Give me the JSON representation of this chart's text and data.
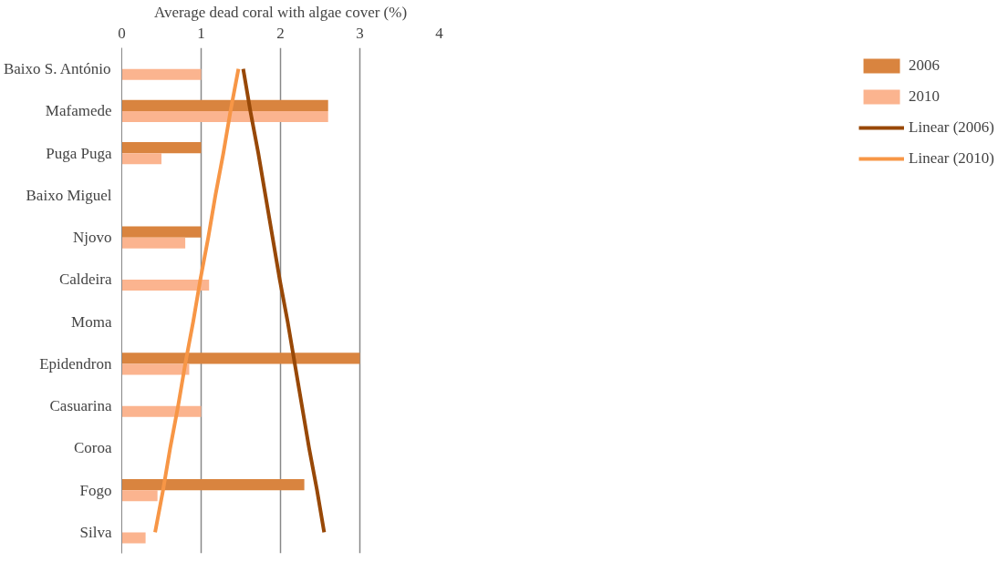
{
  "chart_data": {
    "type": "bar",
    "orientation": "horizontal",
    "xlabel": "Average dead coral with algae cover (%)",
    "categories": [
      "Baixo S. António",
      "Mafamede",
      "Puga Puga",
      "Baixo Miguel",
      "Njovo",
      "Caldeira",
      "Moma",
      "Epidendron",
      "Casuarina",
      "Coroa",
      "Fogo",
      "Silva"
    ],
    "series": [
      {
        "name": "2006",
        "color": "#d9843f",
        "values": [
          null,
          2.6,
          1.0,
          null,
          1.0,
          null,
          null,
          3.0,
          null,
          null,
          2.3,
          null
        ]
      },
      {
        "name": "2010",
        "color": "#fbb48f",
        "values": [
          1.0,
          2.6,
          0.5,
          null,
          0.8,
          1.1,
          null,
          0.85,
          1.0,
          null,
          0.45,
          0.3
        ]
      },
      {
        "name": "Linear (2006)",
        "type": "line",
        "color": "#984807",
        "values": [
          1.53,
          1.62,
          1.72,
          1.81,
          1.9,
          1.99,
          2.09,
          2.18,
          2.27,
          2.36,
          2.46,
          2.55
        ]
      },
      {
        "name": "Linear (2010)",
        "type": "line",
        "color": "#f79646",
        "values": [
          1.47,
          1.37,
          1.28,
          1.18,
          1.09,
          0.99,
          0.9,
          0.8,
          0.71,
          0.61,
          0.52,
          0.42
        ]
      }
    ],
    "xlim": [
      0,
      4
    ],
    "xticks": [
      0,
      1,
      2,
      3,
      4
    ],
    "grid": "x",
    "legend": "right"
  }
}
